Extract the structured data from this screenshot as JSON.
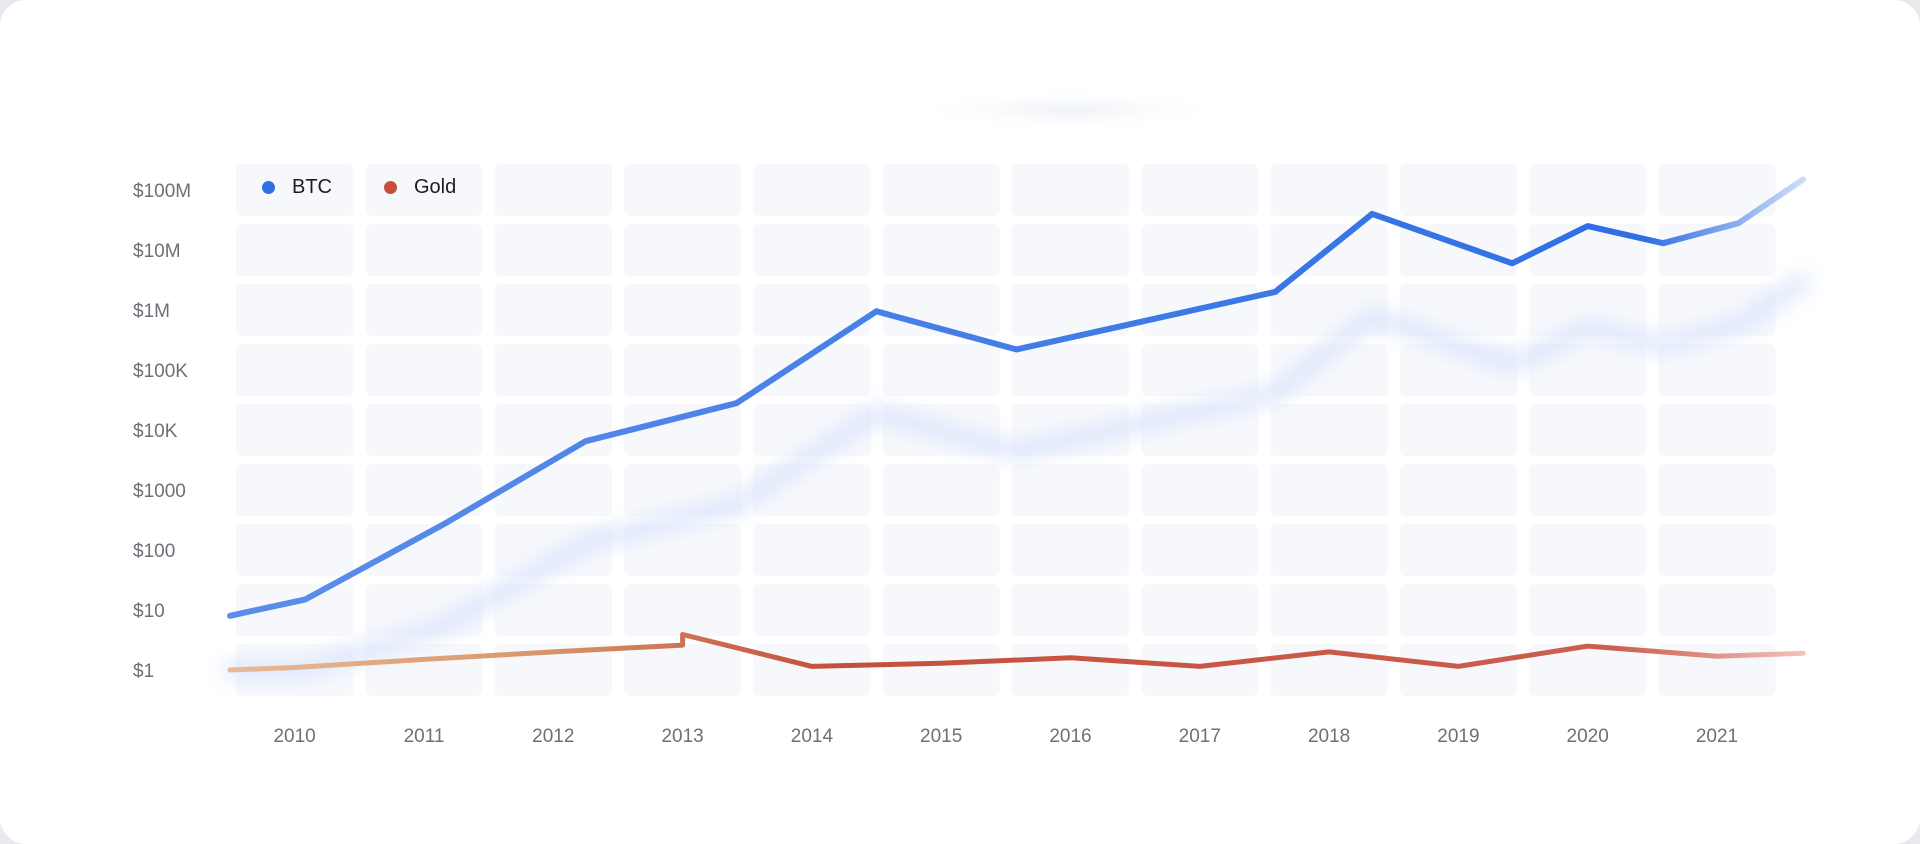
{
  "chart_data": {
    "type": "line",
    "x": [
      "2010",
      "2011",
      "2012",
      "2013",
      "2014",
      "2015",
      "2016",
      "2017",
      "2018",
      "2019",
      "2020",
      "2021"
    ],
    "y_scale": "log",
    "y_ticks": [
      "$1",
      "$10",
      "$100",
      "$1000",
      "$10K",
      "$100K",
      "$1M",
      "$10M",
      "$100M"
    ],
    "ylim": [
      1,
      100000000
    ],
    "grid": true,
    "legend_position": "top-left",
    "series": [
      {
        "name": "BTC",
        "color": "#2f6fe4",
        "points": [
          [
            "2009-07",
            8
          ],
          [
            "2010-02",
            15
          ],
          [
            "2011-03",
            280
          ],
          [
            "2012-04",
            6500
          ],
          [
            "2013-06",
            28000
          ],
          [
            "2014-07",
            950000
          ],
          [
            "2015-08",
            220000
          ],
          [
            "2017-08",
            2000000
          ],
          [
            "2018-05",
            40000000
          ],
          [
            "2019-06",
            6000000
          ],
          [
            "2020-01",
            25000000
          ],
          [
            "2020-08",
            13000000
          ],
          [
            "2021-03",
            28000000
          ],
          [
            "2021-09",
            150000000
          ]
        ]
      },
      {
        "name": "Gold",
        "color": "#c4503c",
        "points": [
          [
            "2009-07",
            1.0
          ],
          [
            "2010-01",
            1.1
          ],
          [
            "2011-01",
            1.5
          ],
          [
            "2012-01",
            2.0
          ],
          [
            "2013-01",
            2.6
          ],
          [
            "2013-01",
            3.9
          ],
          [
            "2014-01",
            1.15
          ],
          [
            "2015-01",
            1.3
          ],
          [
            "2016-01",
            1.6
          ],
          [
            "2017-01",
            1.15
          ],
          [
            "2018-01",
            2.0
          ],
          [
            "2019-01",
            1.15
          ],
          [
            "2020-01",
            2.5
          ],
          [
            "2021-01",
            1.7
          ],
          [
            "2021-09",
            1.9
          ]
        ]
      }
    ]
  }
}
